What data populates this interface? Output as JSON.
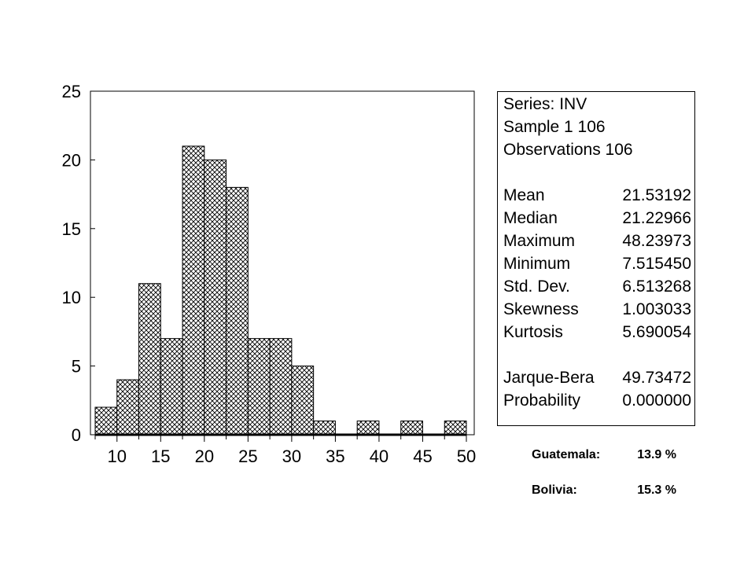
{
  "chart_data": {
    "type": "bar",
    "title": "",
    "xlabel": "",
    "ylabel": "",
    "bin_edges": [
      7.5,
      10,
      12.5,
      15,
      17.5,
      20,
      22.5,
      25,
      27.5,
      30,
      32.5,
      35,
      37.5,
      40,
      42.5,
      45,
      47.5,
      50
    ],
    "values": [
      2,
      4,
      11,
      7,
      21,
      20,
      18,
      7,
      7,
      5,
      1,
      0,
      1,
      0,
      1,
      0,
      1
    ],
    "xlim": [
      7.5,
      50
    ],
    "ylim": [
      0,
      25
    ],
    "x_ticks": [
      10,
      15,
      20,
      25,
      30,
      35,
      40,
      45,
      50
    ],
    "y_ticks": [
      0,
      5,
      10,
      15,
      20,
      25
    ],
    "grid": false,
    "bar_fill": "crosshatch",
    "bar_color": "#000000"
  },
  "stats": {
    "series": "Series: INV",
    "sample": "Sample 1 106",
    "observations": "Observations 106",
    "rows_a": [
      {
        "label": "Mean",
        "value": "21.53192"
      },
      {
        "label": "Median",
        "value": "21.22966"
      },
      {
        "label": "Maximum",
        "value": "48.23973"
      },
      {
        "label": "Minimum",
        "value": "7.515450"
      },
      {
        "label": "Std. Dev.",
        "value": "6.513268"
      },
      {
        "label": "Skewness",
        "value": "1.003033"
      },
      {
        "label": "Kurtosis",
        "value": "5.690054"
      }
    ],
    "rows_b": [
      {
        "label": "Jarque-Bera",
        "value": "49.73472"
      },
      {
        "label": "Probability",
        "value": "0.000000"
      }
    ]
  },
  "notes": [
    {
      "label": "Guatemala:",
      "value": "13.9 %"
    },
    {
      "label": "Bolivia:",
      "value": "15.3 %"
    }
  ]
}
